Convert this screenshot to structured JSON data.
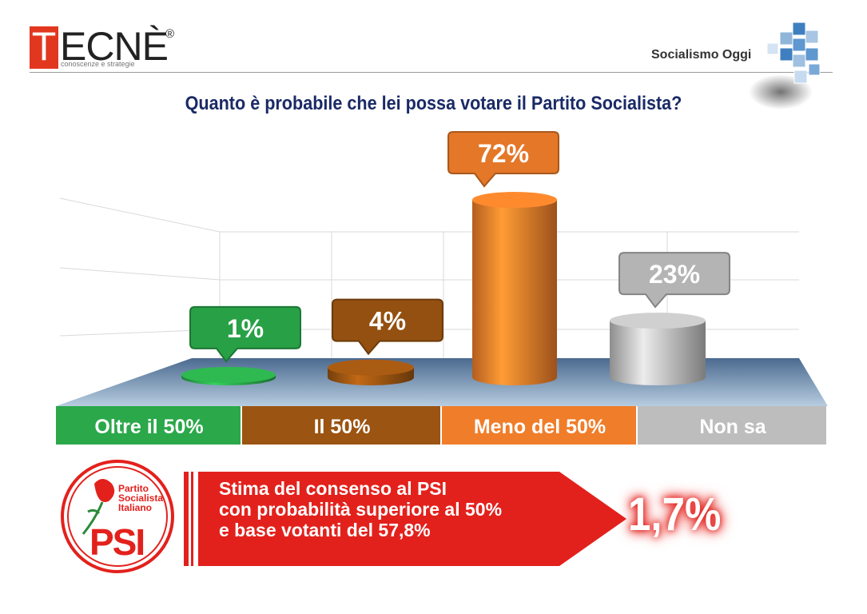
{
  "header": {
    "logo_first": "T",
    "logo_rest": "ECNÈ",
    "logo_reg": "®",
    "logo_tagline": "conoscenze e strategie",
    "brand": "Socialismo Oggi"
  },
  "chart_data": {
    "type": "bar",
    "title": "Quanto è probabile che lei possa votare il Partito Socialista?",
    "categories": [
      "Oltre il 50%",
      "Il 50%",
      "Meno del 50%",
      "Non sa"
    ],
    "values": [
      1,
      4,
      72,
      23
    ],
    "value_labels": [
      "1%",
      "4%",
      "72%",
      "23%"
    ],
    "colors": [
      "#2aa84a",
      "#9b5411",
      "#f07d2a",
      "#bdbdbd"
    ],
    "ylim": [
      0,
      100
    ],
    "grid": true
  },
  "footer": {
    "psi_label": "Partito Socialista Italiano",
    "psi_abbr": "PSI",
    "line1": "Stima del consenso al PSI",
    "line2": "con probabilità superiore al 50%",
    "line3": "e base votanti del 57,8%",
    "estimate": "1,7%"
  }
}
